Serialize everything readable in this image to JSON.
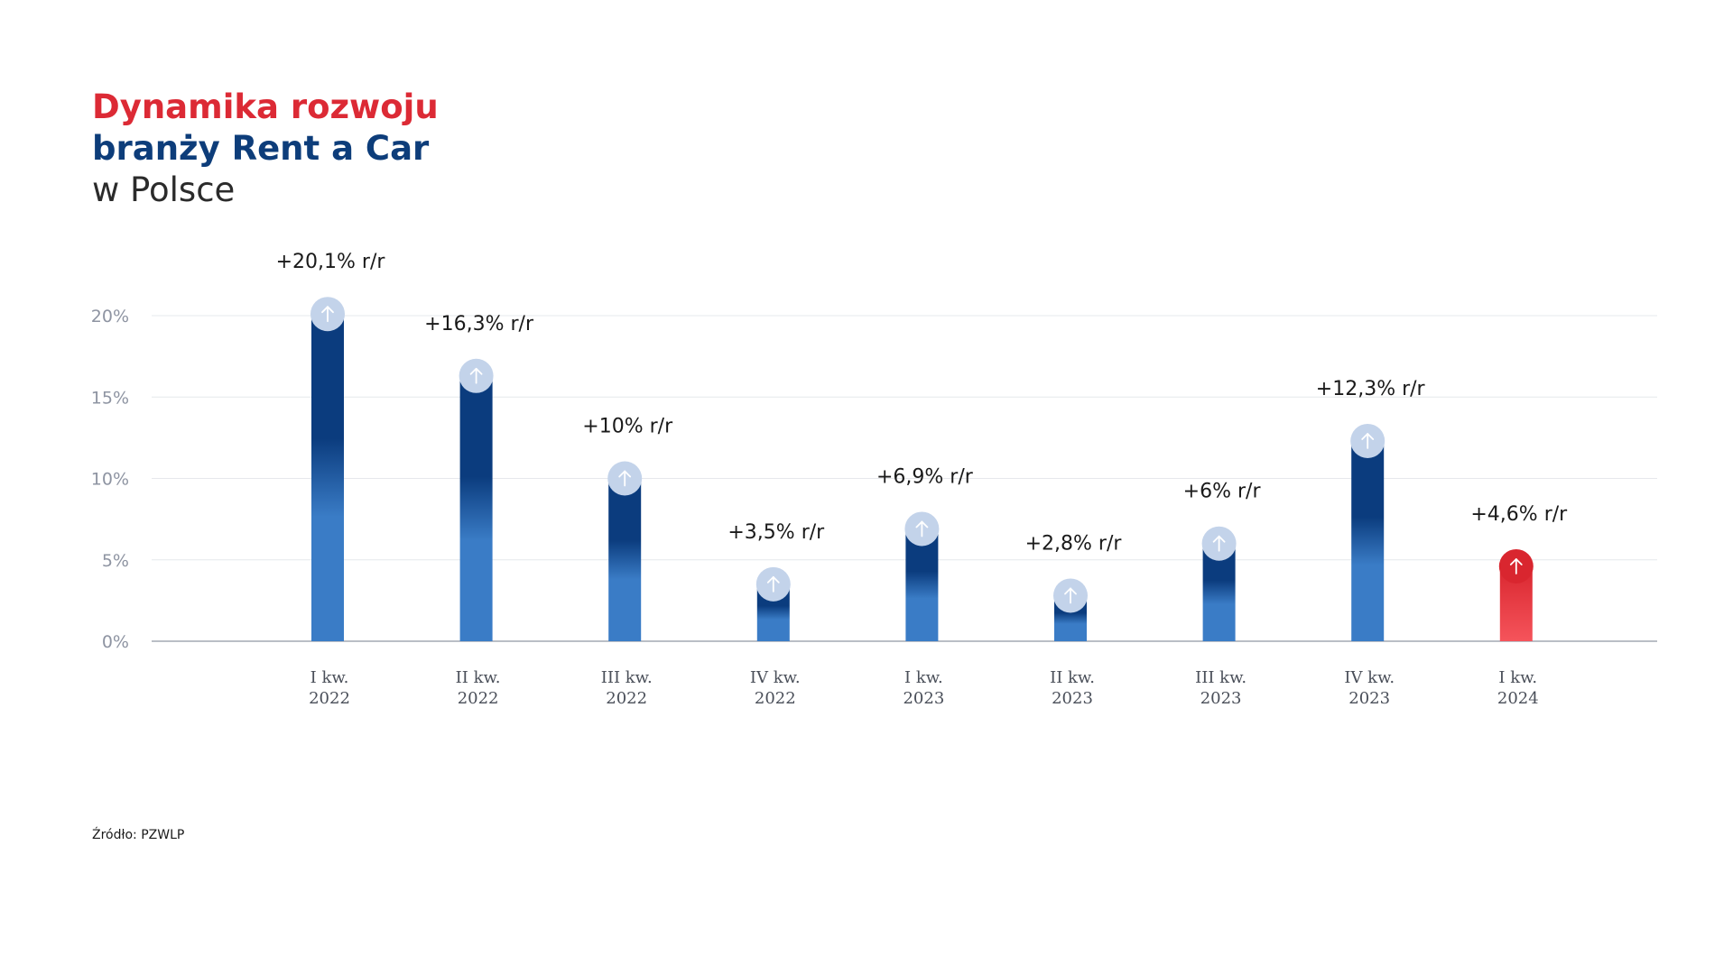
{
  "title": {
    "line1": "Dynamika rozwoju",
    "line2": "branży Rent a Car",
    "line3": "w Polsce",
    "line1_color": "#dc2a35",
    "line2_color": "#0d3d7a"
  },
  "source": "Źródło: PZWLP",
  "chart_data": {
    "type": "bar",
    "categories": [
      [
        "I kw.",
        "2022"
      ],
      [
        "II kw.",
        "2022"
      ],
      [
        "III kw.",
        "2022"
      ],
      [
        "IV kw.",
        "2022"
      ],
      [
        "I kw.",
        "2023"
      ],
      [
        "II kw.",
        "2023"
      ],
      [
        "III kw.",
        "2023"
      ],
      [
        "IV kw.",
        "2023"
      ],
      [
        "I kw.",
        "2024"
      ]
    ],
    "values": [
      20.1,
      16.3,
      10,
      3.5,
      6.9,
      2.8,
      6,
      12.3,
      4.6
    ],
    "data_labels": [
      "+20,1% r/r",
      "+16,3% r/r",
      "+10% r/r",
      "+3,5% r/r",
      "+6,9% r/r",
      "+2,8% r/r",
      "+6% r/r",
      "+12,3% r/r",
      "+4,6% r/r"
    ],
    "yticks": [
      0,
      5,
      10,
      15,
      20
    ],
    "ytick_labels": [
      "0%",
      "5%",
      "10%",
      "15%",
      "20%"
    ],
    "ylim": [
      0,
      20
    ],
    "grid": true,
    "colors": {
      "bar_dark": "#0b3c7e",
      "bar_light": "#3a7cc6",
      "highlight_dark": "#d9262f",
      "highlight_light": "#f5545b",
      "cap": "#c3d3ea",
      "highlight_index": 8
    },
    "icon": "arrow-up-icon"
  }
}
